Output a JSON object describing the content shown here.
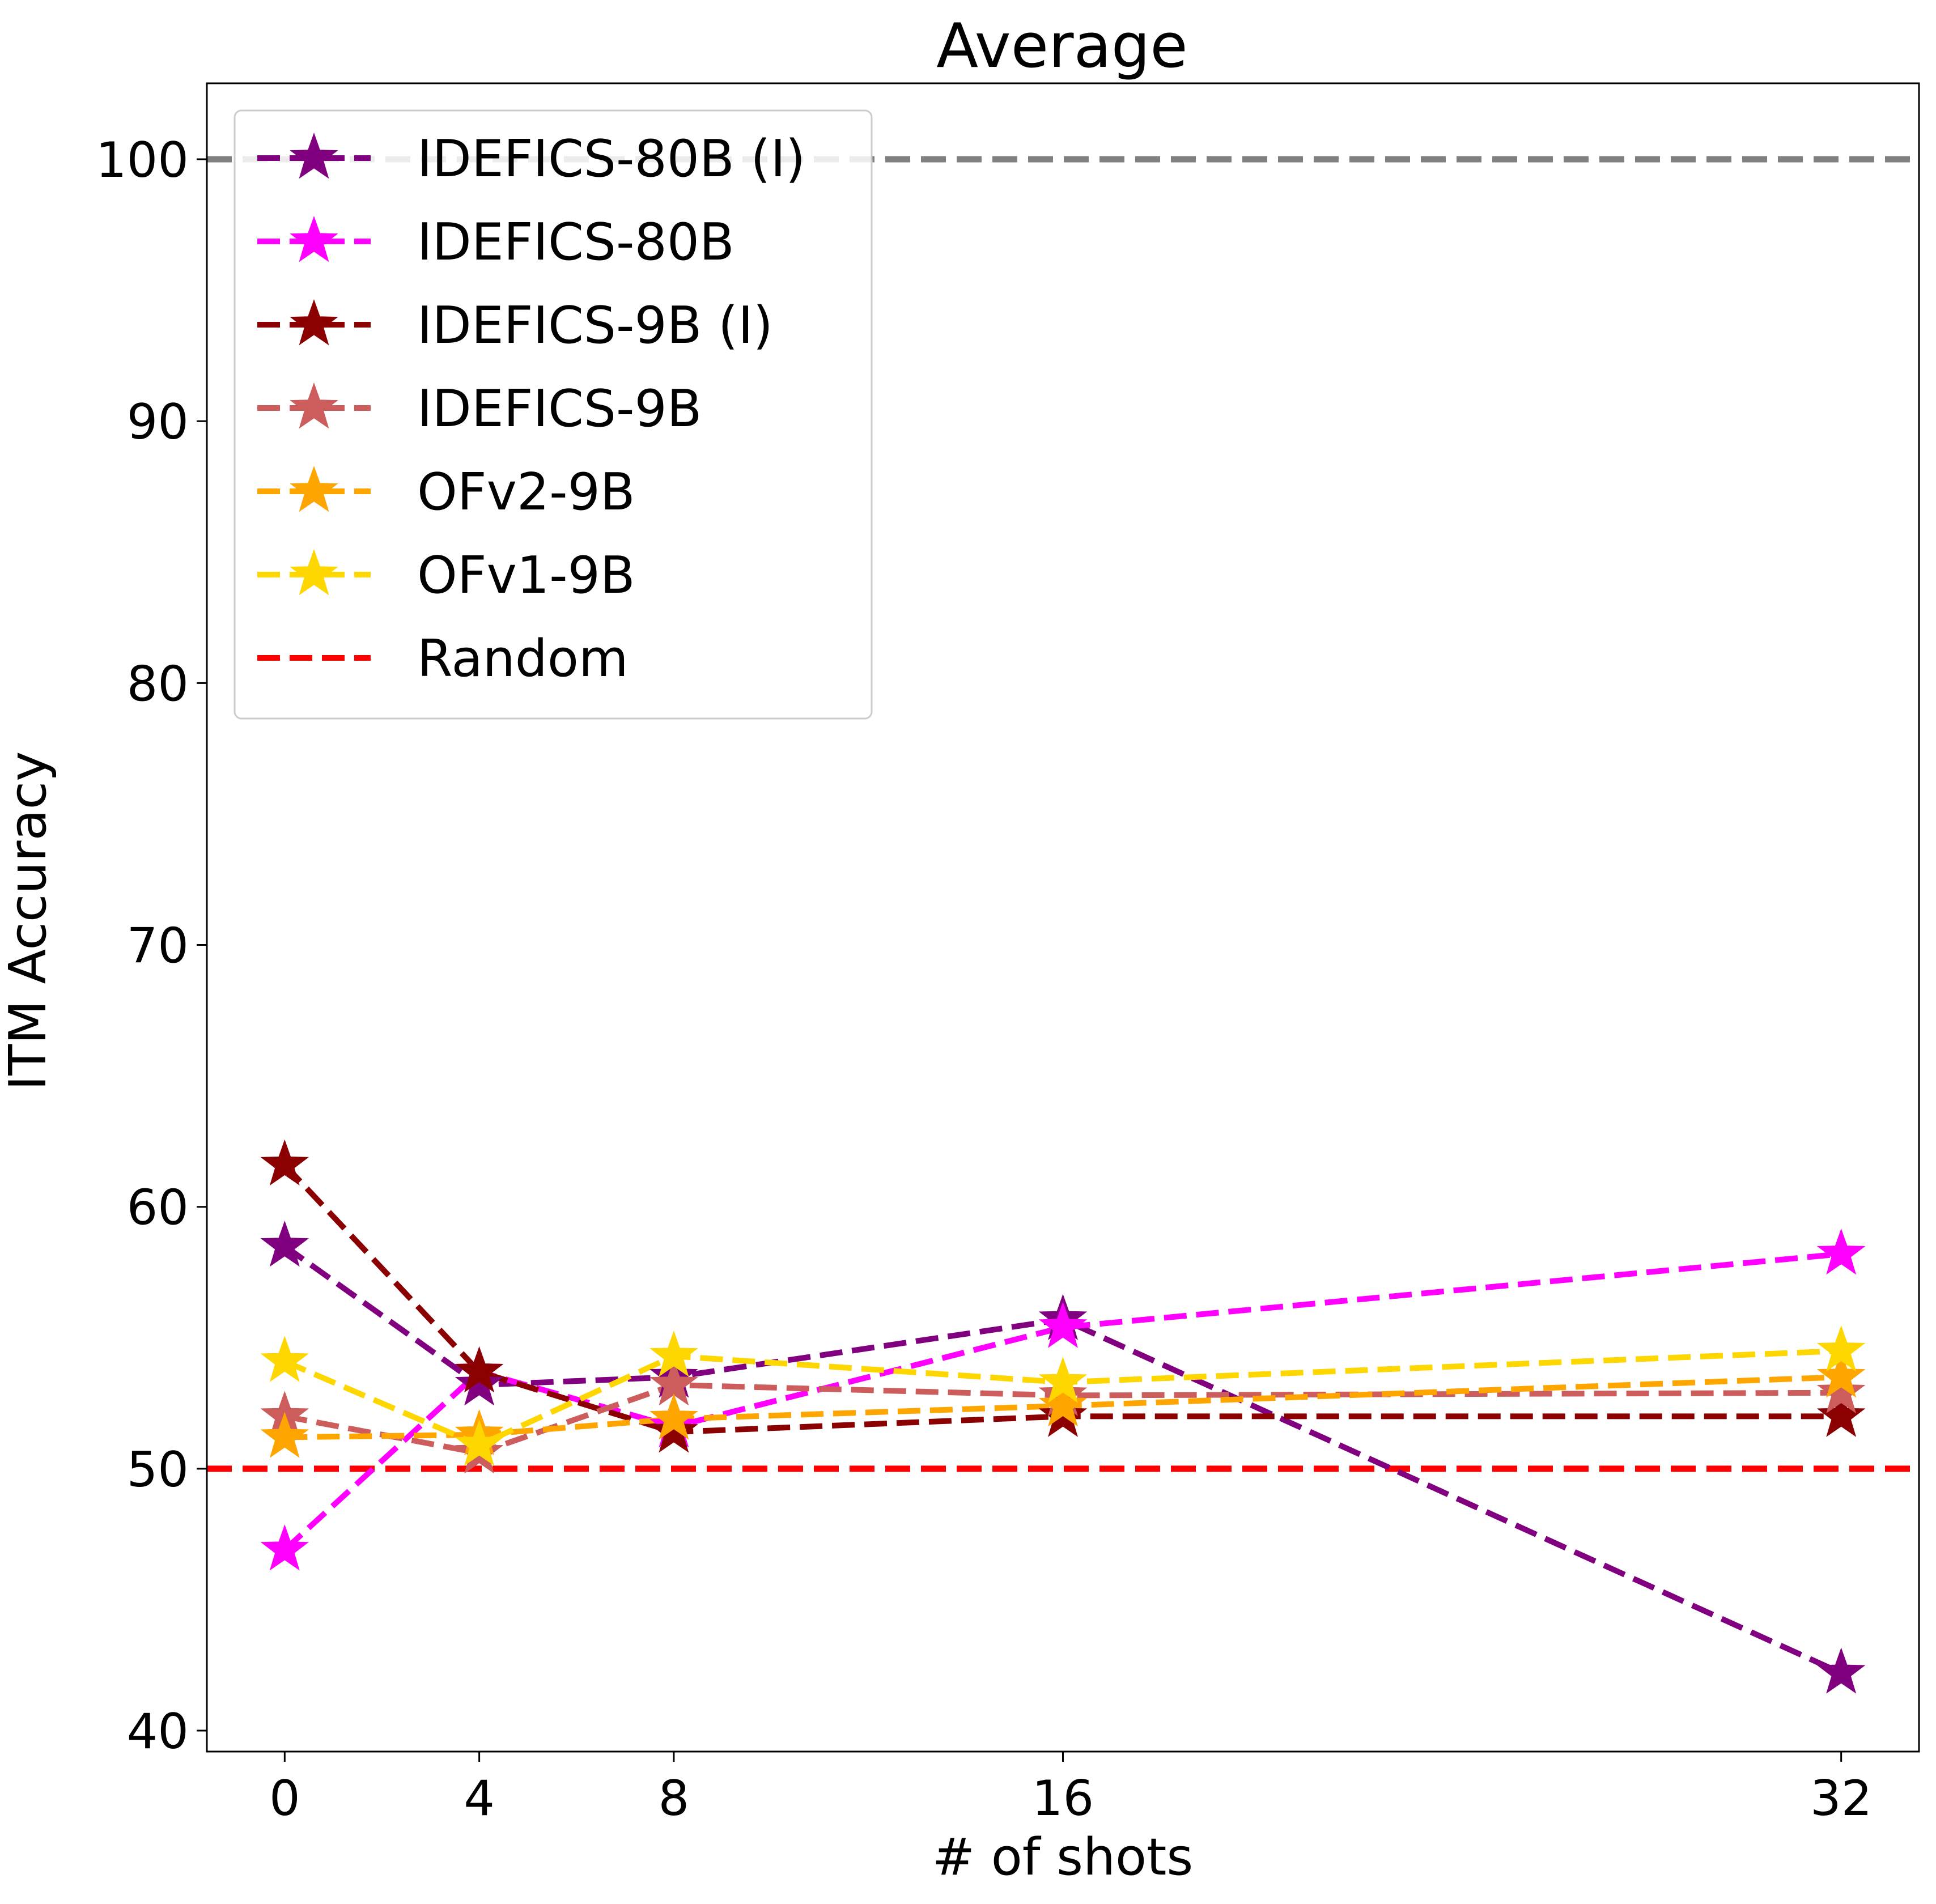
{
  "chart_data": {
    "type": "line",
    "title": "Average",
    "xlabel": "# of shots",
    "ylabel": "ITM Accuracy",
    "x": [
      0,
      4,
      8,
      16,
      32
    ],
    "x_ticks": [
      "0",
      "4",
      "8",
      "16",
      "32"
    ],
    "y_ticks": [
      "40",
      "50",
      "60",
      "70",
      "80",
      "90",
      "100"
    ],
    "xlim": [
      -1.6,
      33.6
    ],
    "ylim": [
      39.2,
      102.9
    ],
    "grid": false,
    "legend_position": "top-left",
    "marker": "star",
    "line_style": "dashed",
    "series": [
      {
        "name": "IDEFICS-80B (I)",
        "color": "#800080",
        "values": [
          58.5,
          53.2,
          53.5,
          55.7,
          42.2
        ]
      },
      {
        "name": "IDEFICS-80B",
        "color": "#ff00ff",
        "values": [
          46.9,
          53.7,
          51.6,
          55.4,
          58.2
        ]
      },
      {
        "name": "IDEFICS-9B (I)",
        "color": "#8b0000",
        "values": [
          61.6,
          53.7,
          51.4,
          52.0,
          52.0
        ]
      },
      {
        "name": "IDEFICS-9B",
        "color": "#cd5c5c",
        "values": [
          52.0,
          50.6,
          53.2,
          52.8,
          52.9
        ]
      },
      {
        "name": "OFv2-9B",
        "color": "#ffa500",
        "values": [
          51.2,
          51.3,
          51.9,
          52.4,
          53.5
        ]
      },
      {
        "name": "OFv1-9B",
        "color": "#ffd700",
        "values": [
          54.1,
          50.9,
          54.3,
          53.3,
          54.5
        ]
      }
    ],
    "reference_lines": [
      {
        "name": "Random",
        "y": 50,
        "color": "#ff0000",
        "in_legend": true
      },
      {
        "name": "",
        "y": 100,
        "color": "#808080",
        "in_legend": false
      }
    ]
  }
}
